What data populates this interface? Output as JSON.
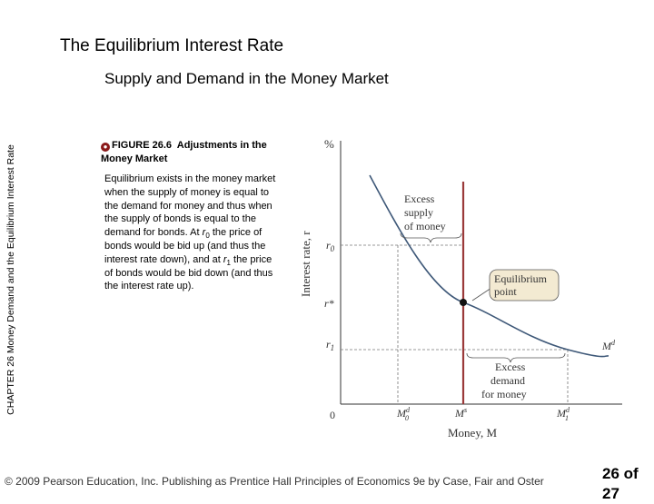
{
  "slide": {
    "title": "The Equilibrium Interest Rate",
    "subtitle": "Supply and Demand in the Money Market",
    "side_label": "CHAPTER 26  Money Demand and the Equilibrium Interest Rate",
    "figure_icon": "figure-bullet-icon",
    "figure_caption_number": "FIGURE 26.6",
    "figure_caption_title": "Adjustments in the Money Market",
    "figure_body_1": "Equilibrium exists in the money market when the supply of money is equal to the demand for money and thus when the supply of bonds is equal to the demand for bonds. At ",
    "figure_body_r0": "r",
    "figure_body_r0_sub": "0",
    "figure_body_2": " the price of bonds would be bid up (and thus the interest rate down), and at ",
    "figure_body_r1": "r",
    "figure_body_r1_sub": "1",
    "figure_body_3": " the price of bonds would be bid down (and thus the interest rate up).",
    "footer": "© 2009 Pearson Education, Inc. Publishing as Prentice Hall  Principles of Economics 9e by Case, Fair and Oster",
    "page_number": "26 of",
    "page_total": "27"
  },
  "diagram": {
    "y_unit": "%",
    "y_axis_label": "Interest rate, r",
    "x_axis_label": "Money, M",
    "origin_label": "0",
    "y_tick_r0": "r",
    "y_tick_r0_sub": "0",
    "y_tick_rstar": "r*",
    "y_tick_r1": "r",
    "y_tick_r1_sub": "1",
    "x_tick_md0": "M",
    "x_tick_md0_sup": "d",
    "x_tick_md0_sub": "0",
    "x_tick_ms": "M",
    "x_tick_ms_sup": "s",
    "x_tick_md1": "M",
    "x_tick_md1_sup": "d",
    "x_tick_md1_sub": "1",
    "curve_label": "M",
    "curve_label_sup": "d",
    "excess_supply_l1": "Excess",
    "excess_supply_l2": "supply",
    "excess_supply_l3": "of money",
    "equilibrium_l1": "Equilibrium",
    "equilibrium_l2": "point",
    "excess_demand_l1": "Excess",
    "excess_demand_l2": "demand",
    "excess_demand_l3": "for money",
    "colors": {
      "supply_line": "#9b3a3a",
      "demand_curve": "#3e5878",
      "callout_fill": "#f3ead2",
      "axis": "#333333"
    }
  }
}
